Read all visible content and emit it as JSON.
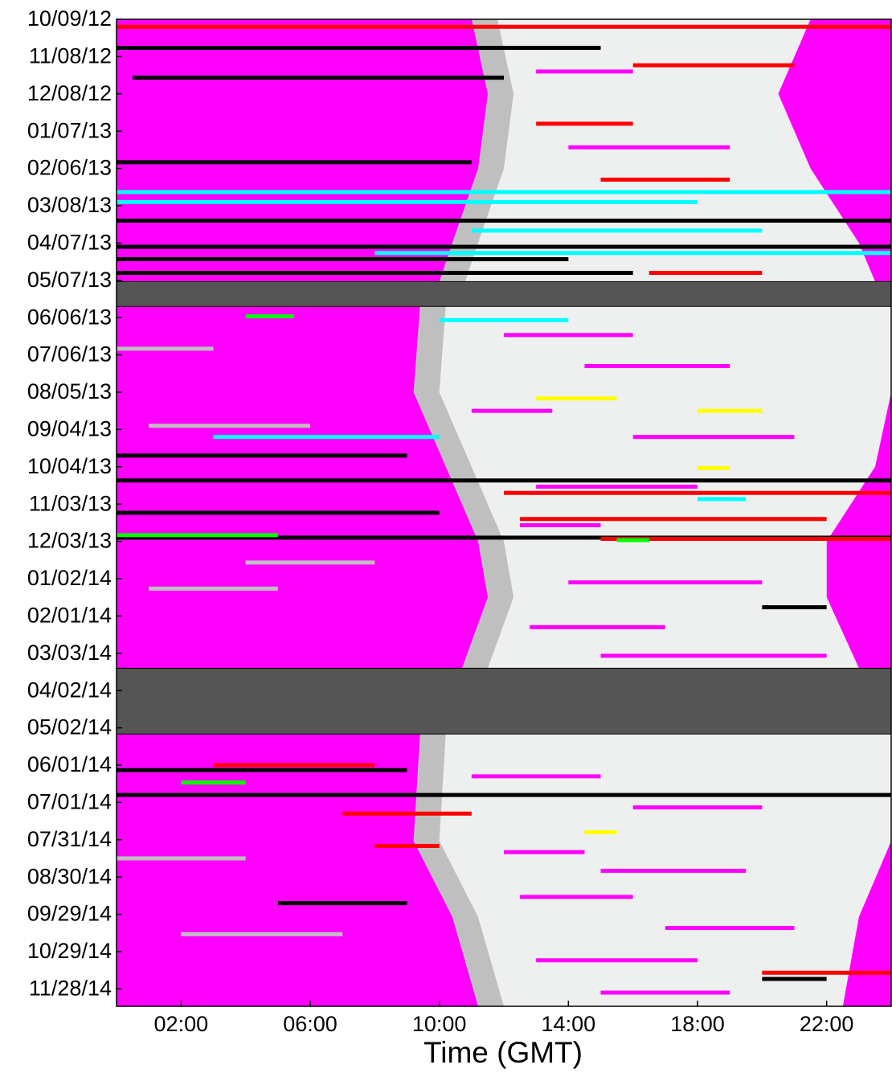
{
  "chart_data": {
    "type": "raster",
    "x_label": "Time (GMT)",
    "xlim": [
      0,
      24
    ],
    "xticks": [
      {
        "value": 2,
        "label": "02:00"
      },
      {
        "value": 6,
        "label": "06:00"
      },
      {
        "value": 10,
        "label": "10:00"
      },
      {
        "value": 14,
        "label": "14:00"
      },
      {
        "value": 18,
        "label": "18:00"
      },
      {
        "value": 22,
        "label": "22:00"
      }
    ],
    "ylim": [
      "2012-10-09",
      "2014-12-12"
    ],
    "yticks": [
      {
        "value": "2012-10-09",
        "label": "10/09/12"
      },
      {
        "value": "2012-11-08",
        "label": "11/08/12"
      },
      {
        "value": "2012-12-08",
        "label": "12/08/12"
      },
      {
        "value": "2013-01-07",
        "label": "01/07/13"
      },
      {
        "value": "2013-02-06",
        "label": "02/06/13"
      },
      {
        "value": "2013-03-08",
        "label": "03/08/13"
      },
      {
        "value": "2013-04-07",
        "label": "04/07/13"
      },
      {
        "value": "2013-05-07",
        "label": "05/07/13"
      },
      {
        "value": "2013-06-06",
        "label": "06/06/13"
      },
      {
        "value": "2013-07-06",
        "label": "07/06/13"
      },
      {
        "value": "2013-08-05",
        "label": "08/05/13"
      },
      {
        "value": "2013-09-04",
        "label": "09/04/13"
      },
      {
        "value": "2013-10-04",
        "label": "10/04/13"
      },
      {
        "value": "2013-11-03",
        "label": "11/03/13"
      },
      {
        "value": "2013-12-03",
        "label": "12/03/13"
      },
      {
        "value": "2014-01-02",
        "label": "01/02/14"
      },
      {
        "value": "2014-02-01",
        "label": "02/01/14"
      },
      {
        "value": "2014-03-03",
        "label": "03/03/14"
      },
      {
        "value": "2014-04-02",
        "label": "04/02/14"
      },
      {
        "value": "2014-05-02",
        "label": "05/02/14"
      },
      {
        "value": "2014-06-01",
        "label": "06/01/14"
      },
      {
        "value": "2014-07-01",
        "label": "07/01/14"
      },
      {
        "value": "2014-07-31",
        "label": "07/31/14"
      },
      {
        "value": "2014-08-30",
        "label": "08/30/14"
      },
      {
        "value": "2014-09-29",
        "label": "09/29/14"
      },
      {
        "value": "2014-10-29",
        "label": "10/29/14"
      },
      {
        "value": "2014-11-28",
        "label": "11/28/14"
      }
    ],
    "night_color": "#ff00ff",
    "day_color": "#eef0f0",
    "twilight_color": "#bfbfbf",
    "gap_color": "#555555",
    "daylight": [
      {
        "dates": [
          "2012-10-09",
          "2012-12-08",
          "2013-02-06",
          "2013-04-07",
          "2013-05-08"
        ],
        "start": [
          11.8,
          12.3,
          12.0,
          11.2,
          10.8
        ],
        "end": [
          21.5,
          20.5,
          21.5,
          23.0,
          23.5
        ]
      },
      {
        "dates": [
          "2013-05-28",
          "2013-08-05",
          "2013-10-04",
          "2013-12-03",
          "2014-01-17",
          "2014-03-15"
        ],
        "start": [
          10.2,
          10.0,
          11.0,
          12.0,
          12.3,
          11.5
        ],
        "end": [
          24,
          24,
          23.5,
          22.0,
          22.0,
          23.0
        ]
      },
      {
        "dates": [
          "2014-05-07",
          "2014-08-01",
          "2014-10-01",
          "2014-12-12"
        ],
        "start": [
          10.2,
          10.0,
          11.2,
          12.0
        ],
        "end": [
          24,
          24,
          23.0,
          22.5
        ]
      }
    ],
    "gaps": [
      [
        "2013-05-08",
        "2013-05-28"
      ],
      [
        "2014-03-15",
        "2014-05-07"
      ]
    ],
    "series": [
      {
        "color": "#bfbfbf",
        "segments": [
          [
            "2013-07-01",
            0,
            3
          ],
          [
            "2013-09-01",
            1,
            6
          ],
          [
            "2014-01-10",
            1,
            5
          ],
          [
            "2014-08-15",
            0,
            4
          ],
          [
            "2014-10-15",
            2,
            7
          ],
          [
            "2013-12-20",
            4,
            8
          ]
        ]
      },
      {
        "color": "#ff00ff",
        "segments": [
          [
            "2013-06-20",
            12,
            16
          ],
          [
            "2013-07-15",
            14.5,
            19
          ],
          [
            "2013-08-20",
            11,
            13.5
          ],
          [
            "2013-09-10",
            16,
            21
          ],
          [
            "2013-10-20",
            13,
            18
          ],
          [
            "2013-11-20",
            12.5,
            15
          ],
          [
            "2014-01-05",
            14,
            20
          ],
          [
            "2014-02-10",
            12.8,
            17
          ],
          [
            "2014-03-05",
            15,
            22
          ],
          [
            "2014-06-10",
            11,
            15
          ],
          [
            "2014-07-05",
            16,
            20
          ],
          [
            "2014-08-10",
            12,
            14.5
          ],
          [
            "2014-08-25",
            15,
            19.5
          ],
          [
            "2014-09-15",
            12.5,
            16
          ],
          [
            "2014-10-10",
            17,
            21
          ],
          [
            "2014-11-05",
            13,
            18
          ],
          [
            "2014-12-01",
            15,
            19
          ],
          [
            "2012-11-20",
            13,
            16
          ],
          [
            "2013-01-20",
            14,
            19
          ]
        ]
      },
      {
        "color": "#000000",
        "segments": [
          [
            "2012-11-01",
            0,
            15
          ],
          [
            "2012-11-25",
            0.5,
            12
          ],
          [
            "2013-02-01",
            0,
            11
          ],
          [
            "2013-03-20",
            0,
            24
          ],
          [
            "2013-04-10",
            0,
            24
          ],
          [
            "2013-04-20",
            0,
            14
          ],
          [
            "2013-05-01",
            0,
            16
          ],
          [
            "2013-09-25",
            0,
            9
          ],
          [
            "2013-10-15",
            0,
            24
          ],
          [
            "2013-11-10",
            0,
            10
          ],
          [
            "2013-11-30",
            0,
            24
          ],
          [
            "2014-01-25",
            20,
            22
          ],
          [
            "2014-06-05",
            0,
            9
          ],
          [
            "2014-06-25",
            0,
            24
          ],
          [
            "2014-09-20",
            5,
            9
          ],
          [
            "2014-11-20",
            20,
            22
          ]
        ]
      },
      {
        "color": "#ff0000",
        "segments": [
          [
            "2012-10-15",
            0,
            24
          ],
          [
            "2012-11-15",
            16,
            21
          ],
          [
            "2013-01-01",
            13,
            16
          ],
          [
            "2013-02-15",
            15,
            19
          ],
          [
            "2013-05-01",
            16.5,
            20
          ],
          [
            "2013-10-25",
            12,
            24
          ],
          [
            "2013-11-15",
            12.5,
            22
          ],
          [
            "2013-12-01",
            15,
            24
          ],
          [
            "2014-06-01",
            3,
            8
          ],
          [
            "2014-07-10",
            7,
            11
          ],
          [
            "2014-08-05",
            8,
            10
          ],
          [
            "2014-11-15",
            20,
            24
          ]
        ]
      },
      {
        "color": "#00ffff",
        "segments": [
          [
            "2013-02-25",
            0,
            24
          ],
          [
            "2013-03-05",
            0,
            18
          ],
          [
            "2013-03-28",
            11,
            20
          ],
          [
            "2013-04-15",
            8,
            24
          ],
          [
            "2013-06-08",
            10,
            14
          ],
          [
            "2013-09-10",
            3,
            10
          ],
          [
            "2013-10-30",
            18,
            19.5
          ]
        ]
      },
      {
        "color": "#00ff00",
        "segments": [
          [
            "2013-06-05",
            4,
            5.5
          ],
          [
            "2013-11-28",
            0,
            5
          ],
          [
            "2013-12-02",
            15.5,
            16.5
          ],
          [
            "2014-06-15",
            2,
            4
          ]
        ]
      },
      {
        "color": "#ffff00",
        "segments": [
          [
            "2013-08-10",
            13,
            15.5
          ],
          [
            "2013-08-20",
            18,
            20
          ],
          [
            "2013-10-05",
            18,
            19
          ],
          [
            "2014-07-25",
            14.5,
            15.5
          ]
        ]
      }
    ]
  }
}
